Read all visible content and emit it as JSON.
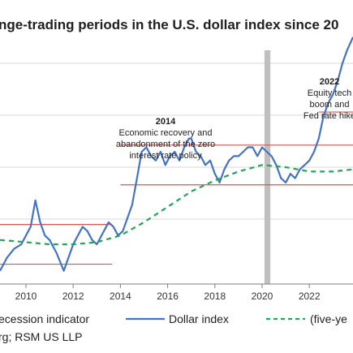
{
  "chart_data": {
    "type": "line",
    "title": "nge-trading periods in the U.S. dollar index since 20",
    "x_ticks": [
      "2010",
      "2012",
      "2014",
      "2016",
      "2018",
      "2020",
      "2022"
    ],
    "xlim": [
      2008.9,
      2023.85
    ],
    "ylim": [
      68,
      121
    ],
    "grid": "horizontal",
    "recession_shading": [
      [
        2020.1,
        2020.35
      ]
    ],
    "series": [
      {
        "name": "Dollar index",
        "type": "line",
        "color": "#4472c4",
        "x": [
          2008.9,
          2009.2,
          2009.5,
          2009.8,
          2010.0,
          2010.2,
          2010.4,
          2010.6,
          2010.8,
          2011.0,
          2011.3,
          2011.6,
          2011.8,
          2012.0,
          2012.2,
          2012.4,
          2012.6,
          2012.8,
          2013.0,
          2013.3,
          2013.5,
          2013.7,
          2013.9,
          2014.1,
          2014.3,
          2014.5,
          2014.7,
          2014.9,
          2015.1,
          2015.3,
          2015.5,
          2015.7,
          2015.9,
          2016.1,
          2016.3,
          2016.5,
          2016.7,
          2016.9,
          2017.0,
          2017.2,
          2017.4,
          2017.6,
          2017.8,
          2018.0,
          2018.2,
          2018.4,
          2018.6,
          2018.8,
          2019.0,
          2019.2,
          2019.4,
          2019.6,
          2019.8,
          2020.0,
          2020.2,
          2020.4,
          2020.6,
          2020.8,
          2021.0,
          2021.2,
          2021.4,
          2021.6,
          2021.8,
          2022.0,
          2022.2,
          2022.4,
          2022.6,
          2022.8,
          2023.0,
          2023.2,
          2023.4,
          2023.6,
          2023.85
        ],
        "y": [
          71,
          74,
          76,
          77,
          79,
          81,
          87,
          82,
          79,
          78,
          75,
          71,
          74,
          77,
          79,
          81,
          80,
          78,
          77,
          80,
          82,
          81,
          79,
          80,
          83,
          86,
          92,
          98,
          99,
          97,
          96,
          98,
          95,
          97,
          98,
          96,
          99,
          101,
          101,
          98,
          97,
          95,
          96,
          93,
          91,
          94,
          96,
          97,
          97,
          98,
          99,
          99,
          97,
          99,
          98,
          97,
          95,
          92,
          91,
          93,
          92,
          94,
          95,
          96,
          98,
          101,
          106,
          109,
          111,
          114,
          118,
          121,
          124
        ]
      },
      {
        "name": "(five-ye",
        "type": "dashed",
        "color": "#22a55b",
        "x": [
          2008.9,
          2010.0,
          2011.0,
          2012.0,
          2013.0,
          2014.0,
          2015.0,
          2016.0,
          2017.0,
          2018.0,
          2019.0,
          2020.0,
          2021.0,
          2022.0,
          2023.0,
          2023.85
        ],
        "y": [
          78,
          77.5,
          77,
          77,
          77.5,
          79,
          82,
          85.5,
          89,
          91.5,
          93.5,
          95,
          94.5,
          93.5,
          93.5,
          94
        ]
      }
    ],
    "range_lines": [
      {
        "y": 81.5,
        "x0": 2008.9,
        "x1": 2013.65
      },
      {
        "y": 72.5,
        "x0": 2008.9,
        "x1": 2013.65
      },
      {
        "y": 99.5,
        "x0": 2014.0,
        "x1": 2023.85
      },
      {
        "y": 90.5,
        "x0": 2014.0,
        "x1": 2023.85
      },
      {
        "y": 107,
        "x0": 2022.4,
        "x1": 2023.85
      }
    ],
    "annotations": [
      {
        "year": "2014",
        "lines": [
          "Economic recovery and",
          "abandonment of the zero",
          "interest rate policy"
        ]
      },
      {
        "year": "2022",
        "lines": [
          "Equity tech",
          "boom and",
          "Fed rate hike"
        ]
      }
    ],
    "legend": {
      "position": "bottom",
      "items": [
        "ecession indicator",
        "Dollar index",
        "(five-ye"
      ]
    },
    "source": "rg; RSM US LLP"
  }
}
